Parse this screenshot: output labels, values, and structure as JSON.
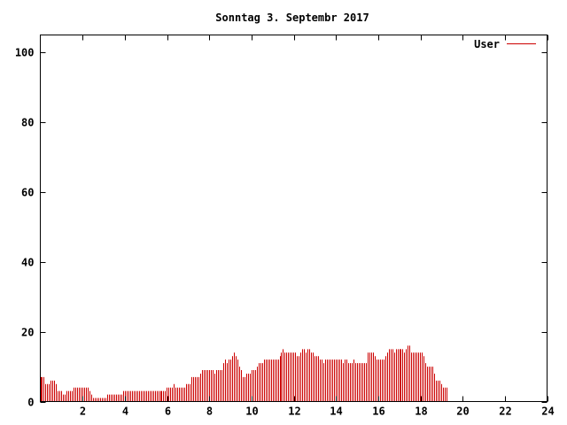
{
  "chart_data": {
    "type": "bar",
    "title": "Sonntag 3. Septembr 2017",
    "xlabel": "",
    "ylabel": "",
    "xlim": [
      0,
      24
    ],
    "ylim": [
      0,
      105
    ],
    "x_ticks": [
      2,
      4,
      6,
      8,
      10,
      12,
      14,
      16,
      18,
      20,
      22,
      24
    ],
    "y_ticks": [
      0,
      20,
      40,
      60,
      80,
      100
    ],
    "grid": false,
    "legend_position": "top-right",
    "series": [
      {
        "name": "User",
        "color": "#cc0000",
        "x_start": 0,
        "x_step": 0.0833,
        "values": [
          7,
          7,
          7,
          5,
          5,
          5,
          6,
          6,
          6,
          5,
          3,
          3,
          3,
          2,
          2,
          3,
          3,
          3,
          3,
          4,
          4,
          4,
          4,
          4,
          4,
          4,
          4,
          4,
          3,
          2,
          1,
          1,
          1,
          1,
          1,
          1,
          1,
          1,
          2,
          2,
          2,
          2,
          2,
          2,
          2,
          2,
          2,
          3,
          3,
          3,
          3,
          3,
          3,
          3,
          3,
          3,
          3,
          3,
          3,
          3,
          3,
          3,
          3,
          3,
          3,
          3,
          3,
          3,
          3,
          3,
          3,
          3,
          4,
          4,
          4,
          4,
          5,
          4,
          4,
          4,
          4,
          4,
          4,
          5,
          5,
          5,
          7,
          7,
          7,
          7,
          7,
          8,
          9,
          9,
          9,
          9,
          9,
          9,
          9,
          8,
          9,
          9,
          9,
          9,
          11,
          12,
          11,
          12,
          12,
          13,
          14,
          13,
          12,
          10,
          9,
          7,
          7,
          8,
          8,
          8,
          9,
          9,
          9,
          10,
          11,
          11,
          11,
          12,
          12,
          12,
          12,
          12,
          12,
          12,
          12,
          12,
          13,
          14,
          15,
          14,
          14,
          14,
          14,
          14,
          14,
          14,
          13,
          13,
          14,
          15,
          15,
          14,
          15,
          15,
          14,
          14,
          13,
          13,
          13,
          12,
          12,
          11,
          12,
          12,
          12,
          12,
          12,
          12,
          12,
          12,
          12,
          12,
          11,
          12,
          12,
          11,
          11,
          11,
          12,
          11,
          11,
          11,
          11,
          11,
          11,
          11,
          14,
          14,
          14,
          14,
          13,
          12,
          12,
          12,
          12,
          12,
          13,
          14,
          15,
          15,
          15,
          14,
          15,
          15,
          15,
          15,
          15,
          14,
          15,
          16,
          16,
          14,
          14,
          14,
          14,
          14,
          14,
          14,
          13,
          11,
          10,
          10,
          10,
          10,
          8,
          6,
          6,
          6,
          5,
          4,
          4,
          4
        ]
      }
    ]
  }
}
